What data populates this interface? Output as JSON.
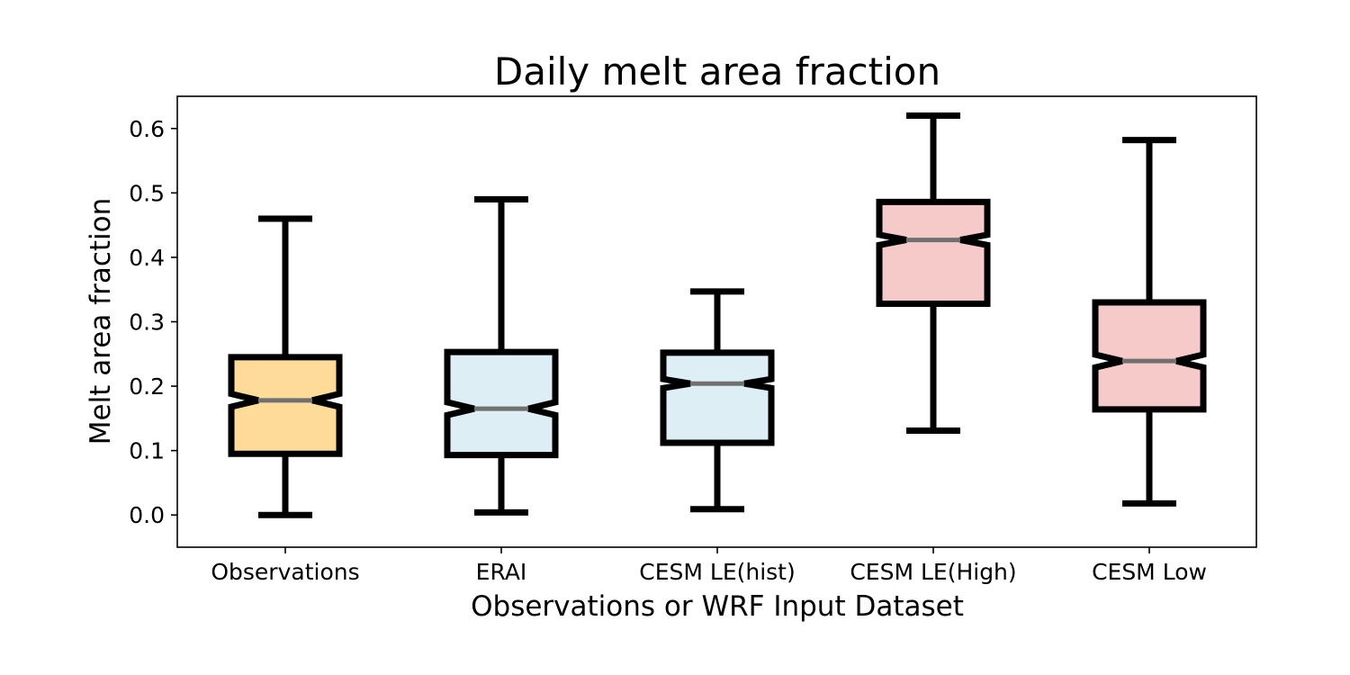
{
  "chart_data": {
    "type": "boxplot",
    "notched": true,
    "title": "Daily melt area fraction",
    "xlabel": "Observations or WRF Input Dataset",
    "ylabel": "Melt area fraction",
    "ylim": [
      -0.05,
      0.65
    ],
    "yticks": [
      "0.0",
      "0.1",
      "0.2",
      "0.3",
      "0.4",
      "0.5",
      "0.6"
    ],
    "categories": [
      "Observations",
      "ERAI",
      "CESM LE(hist)",
      "CESM LE(High)",
      "CESM Low"
    ],
    "boxes": [
      {
        "category": "Observations",
        "whisker_low": 0.0,
        "q1": 0.095,
        "median": 0.178,
        "q3": 0.245,
        "whisker_high": 0.46,
        "notch_low": 0.168,
        "notch_high": 0.188,
        "color": "#fedb99"
      },
      {
        "category": "ERAI",
        "whisker_low": 0.004,
        "q1": 0.093,
        "median": 0.165,
        "q3": 0.253,
        "whisker_high": 0.49,
        "notch_low": 0.155,
        "notch_high": 0.175,
        "color": "#deeef5"
      },
      {
        "category": "CESM LE(hist)",
        "whisker_low": 0.009,
        "q1": 0.112,
        "median": 0.204,
        "q3": 0.252,
        "whisker_high": 0.347,
        "notch_low": 0.197,
        "notch_high": 0.211,
        "color": "#deeef5"
      },
      {
        "category": "CESM LE(High)",
        "whisker_low": 0.131,
        "q1": 0.328,
        "median": 0.427,
        "q3": 0.486,
        "whisker_high": 0.62,
        "notch_low": 0.419,
        "notch_high": 0.435,
        "color": "#f7caca"
      },
      {
        "category": "CESM Low",
        "whisker_low": 0.018,
        "q1": 0.164,
        "median": 0.239,
        "q3": 0.33,
        "whisker_high": 0.582,
        "notch_low": 0.229,
        "notch_high": 0.249,
        "color": "#f7caca"
      }
    ],
    "median_color": "#707070",
    "grid": false,
    "legend": "none"
  }
}
